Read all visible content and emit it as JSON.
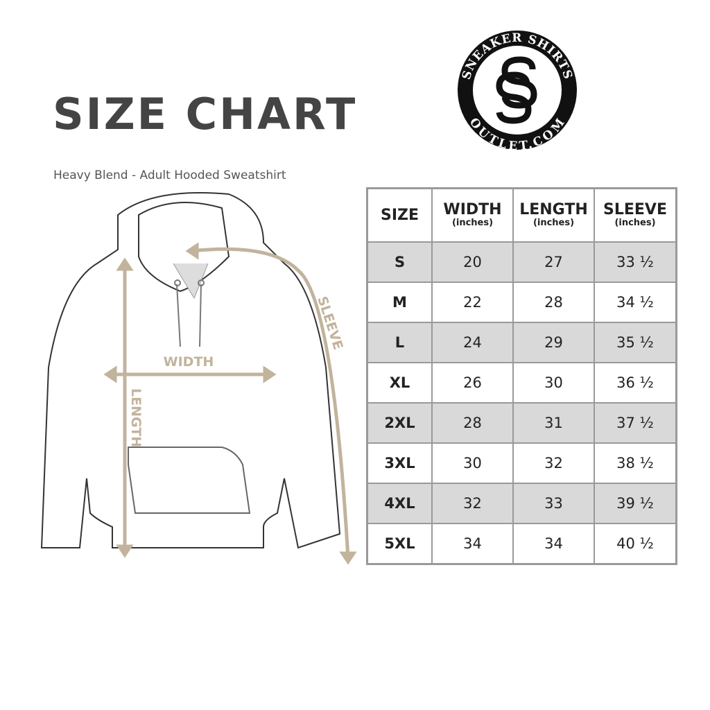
{
  "title": "SIZE CHART",
  "subtitle": "Heavy Blend - Adult Hooded Sweatshirt",
  "logo": {
    "text_top": "SNEAKER SHIRTS",
    "text_bottom": "OUTLET.COM",
    "monogram": "SS"
  },
  "diagram": {
    "width_label": "WIDTH",
    "length_label": "LENGTH",
    "sleeve_label": "SLEEVE",
    "accent_color": "#c2b39c"
  },
  "table": {
    "headers": [
      {
        "label": "SIZE",
        "unit": ""
      },
      {
        "label": "WIDTH",
        "unit": "(inches)"
      },
      {
        "label": "LENGTH",
        "unit": "(inches)"
      },
      {
        "label": "SLEEVE",
        "unit": "(inches)"
      }
    ],
    "rows": [
      [
        "S",
        "20",
        "27",
        "33 ½"
      ],
      [
        "M",
        "22",
        "28",
        "34 ½"
      ],
      [
        "L",
        "24",
        "29",
        "35 ½"
      ],
      [
        "XL",
        "26",
        "30",
        "36 ½"
      ],
      [
        "2XL",
        "28",
        "31",
        "37 ½"
      ],
      [
        "3XL",
        "30",
        "32",
        "38 ½"
      ],
      [
        "4XL",
        "32",
        "33",
        "39 ½"
      ],
      [
        "5XL",
        "34",
        "34",
        "40 ½"
      ]
    ],
    "shade_color": "#d9d9d9"
  }
}
